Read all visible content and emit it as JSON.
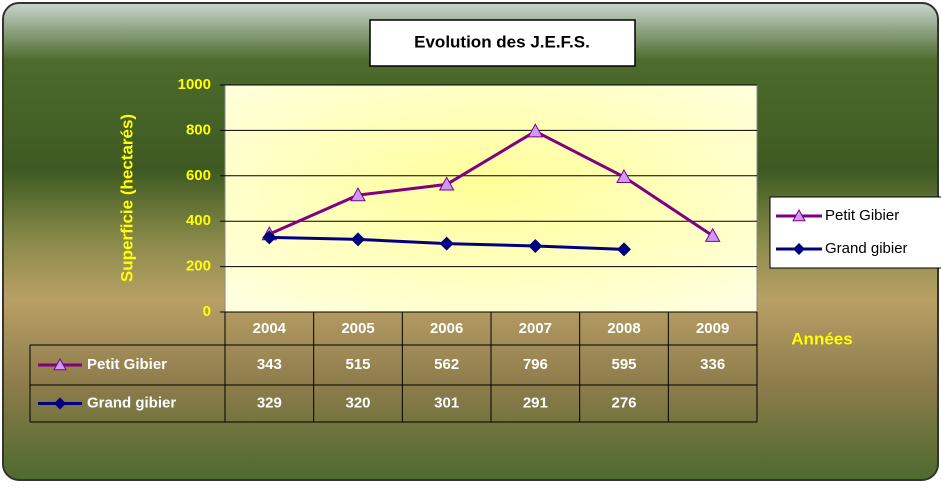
{
  "chart_data": {
    "type": "line",
    "title": "Evolution des J.E.F.S.",
    "y_label": "Superficie (hectarés)",
    "x_label": "Années",
    "categories": [
      "2004",
      "2005",
      "2006",
      "2007",
      "2008",
      "2009"
    ],
    "series": [
      {
        "name": "Petit Gibier",
        "color": "#800080",
        "marker_color": "#cc99ff",
        "marker": "triangle",
        "values": [
          343,
          515,
          562,
          796,
          595,
          336
        ]
      },
      {
        "name": "Grand gibier",
        "color": "#000080",
        "marker_color": "#000080",
        "marker": "diamond",
        "values": [
          329,
          320,
          301,
          291,
          276,
          null
        ]
      }
    ],
    "ylim": [
      0,
      1000
    ],
    "yticks": [
      0,
      200,
      400,
      600,
      800,
      1000
    ],
    "grid": true,
    "legend": "right",
    "data_table": true
  }
}
